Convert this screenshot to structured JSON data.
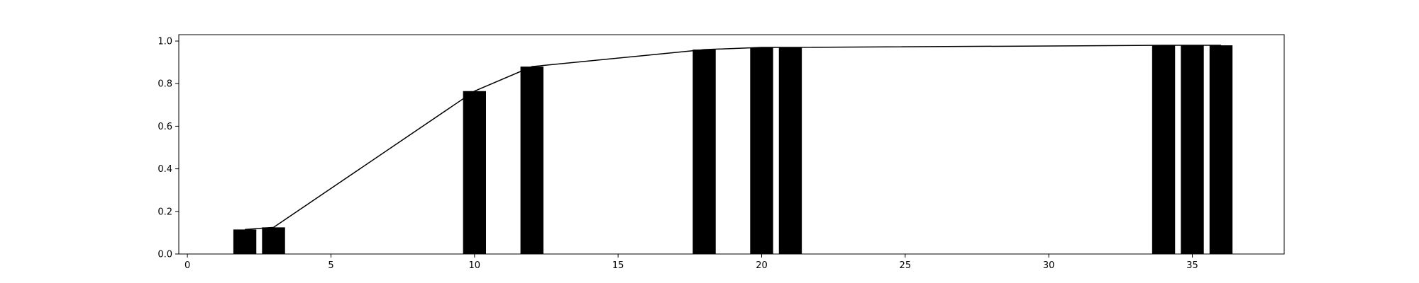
{
  "chart_data": {
    "type": "bar",
    "title": "",
    "xlabel": "",
    "ylabel": "",
    "xlim": [
      -0.3,
      38.2
    ],
    "ylim": [
      0,
      1.03
    ],
    "grid": false,
    "x_ticks": [
      0,
      5,
      10,
      15,
      20,
      25,
      30,
      35
    ],
    "x_tick_labels": [
      "0",
      "5",
      "10",
      "15",
      "20",
      "25",
      "30",
      "35"
    ],
    "y_ticks": [
      0,
      0.2,
      0.4,
      0.6,
      0.8,
      1.0
    ],
    "y_tick_labels": [
      "0.0",
      "0.2",
      "0.4",
      "0.6",
      "0.8",
      "1.0"
    ],
    "bar_width": 0.8,
    "colors": {
      "bars": "#000000",
      "line": "#000000",
      "axes": "#000000"
    },
    "bars": {
      "x": [
        2,
        3,
        10,
        12,
        18,
        20,
        21,
        34,
        35,
        36
      ],
      "values": [
        0.115,
        0.125,
        0.765,
        0.88,
        0.96,
        0.97,
        0.97,
        0.98,
        0.98,
        0.98
      ]
    },
    "line": {
      "x": [
        2,
        3,
        10,
        12,
        18,
        20,
        21,
        34,
        35,
        36
      ],
      "values": [
        0.115,
        0.125,
        0.765,
        0.88,
        0.96,
        0.97,
        0.97,
        0.98,
        0.98,
        0.98
      ]
    }
  }
}
